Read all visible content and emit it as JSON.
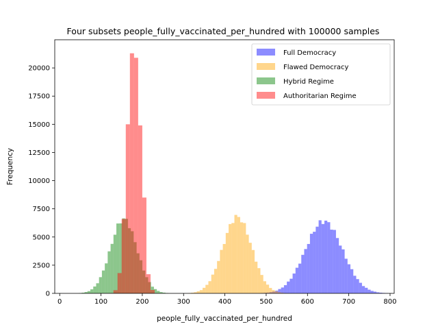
{
  "chart_data": {
    "type": "histogram",
    "title": "Four subsets people_fully_vaccinated_per_hundred with 100000 samples",
    "xlabel": "people_fully_vaccinated_per_hundred",
    "ylabel": "Frequency",
    "xlim": [
      -12,
      810
    ],
    "ylim": [
      0,
      22500
    ],
    "xticks": [
      0,
      100,
      200,
      300,
      400,
      500,
      600,
      700,
      800
    ],
    "yticks": [
      0,
      2500,
      5000,
      7500,
      10000,
      12500,
      15000,
      17500,
      20000
    ],
    "grid": false,
    "legend_position": "top-right",
    "alpha": 0.45,
    "series": [
      {
        "name": "Full Democracy",
        "color": "#0000ff",
        "mean": 640,
        "sd": 45,
        "peak": 6400
      },
      {
        "name": "Flawed Democracy",
        "color": "#ffa500",
        "mean": 430,
        "sd": 35,
        "peak": 6800
      },
      {
        "name": "Hybrid Regime",
        "color": "#008000",
        "mean": 155,
        "sd": 32,
        "peak": 6600
      },
      {
        "name": "Authoritarian Regime",
        "color": "#ff0000",
        "bin_width": 10,
        "bins": [
          {
            "x": 135,
            "v": 280
          },
          {
            "x": 145,
            "v": 1800
          },
          {
            "x": 155,
            "v": 6600
          },
          {
            "x": 165,
            "v": 15000
          },
          {
            "x": 175,
            "v": 21300
          },
          {
            "x": 185,
            "v": 20900
          },
          {
            "x": 195,
            "v": 14900
          },
          {
            "x": 205,
            "v": 8500
          },
          {
            "x": 215,
            "v": 1700
          },
          {
            "x": 225,
            "v": 300
          }
        ]
      }
    ]
  }
}
